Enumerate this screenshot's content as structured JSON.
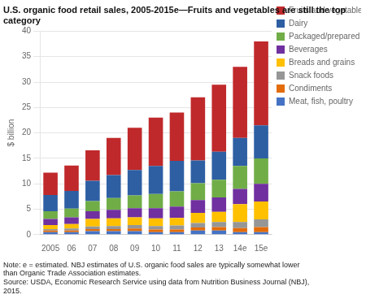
{
  "chart_data": {
    "type": "bar",
    "title": "U.S. organic food retail sales, 2005-2015e—Fruits and vegetables are still the top category",
    "ylabel": "$ billion",
    "note": "Note: e = estimated. NBJ estimates of U.S. organic food sales are typically somewhat lower\nthan Organic Trade Association estimates.\nSource: USDA, Economic Research Service using data from Nutrition Business Journal (NBJ),\n2015.",
    "categories": [
      "2005",
      "06",
      "07",
      "08",
      "09",
      "10",
      "11",
      "12",
      "13",
      "14e",
      "15e"
    ],
    "series": [
      {
        "name": "Meat, fish, poultry",
        "color": "#4472c4",
        "values": [
          0.5,
          0.5,
          0.7,
          0.7,
          0.7,
          0.5,
          0.5,
          0.8,
          0.8,
          0.5,
          0.5
        ]
      },
      {
        "name": "Condiments",
        "color": "#e36c09",
        "values": [
          0.3,
          0.3,
          0.4,
          0.4,
          0.5,
          0.5,
          0.5,
          0.6,
          0.7,
          0.8,
          1.0
        ]
      },
      {
        "name": "Snack foods",
        "color": "#969696",
        "values": [
          0.3,
          0.4,
          0.5,
          0.6,
          0.7,
          0.7,
          0.8,
          0.9,
          1.0,
          1.2,
          1.5
        ]
      },
      {
        "name": "Breads and grains",
        "color": "#ffc000",
        "values": [
          0.8,
          0.9,
          1.5,
          1.5,
          1.5,
          1.5,
          1.5,
          2.0,
          2.0,
          3.5,
          3.5
        ]
      },
      {
        "name": "Beverages",
        "color": "#7030a0",
        "values": [
          1.2,
          1.3,
          1.5,
          1.7,
          1.8,
          2.0,
          2.2,
          2.5,
          2.8,
          3.0,
          3.5
        ]
      },
      {
        "name": "Packaged/prepared foods",
        "color": "#70ad47",
        "values": [
          1.5,
          1.7,
          2.0,
          2.3,
          2.5,
          2.8,
          3.0,
          3.3,
          3.5,
          4.5,
          5.0
        ]
      },
      {
        "name": "Dairy",
        "color": "#2e5fa3",
        "values": [
          3.2,
          3.5,
          4.0,
          4.5,
          5.0,
          5.5,
          6.0,
          4.5,
          5.5,
          5.5,
          6.5
        ]
      },
      {
        "name": "Fruits and vegetables",
        "color": "#c0292b",
        "values": [
          4.4,
          5.0,
          6.0,
          7.3,
          8.3,
          9.5,
          9.5,
          12.4,
          13.2,
          14.0,
          16.5
        ]
      }
    ],
    "ylim": [
      0,
      40
    ],
    "yticks": [
      0,
      5,
      10,
      15,
      20,
      25,
      30,
      35,
      40
    ],
    "grid": true,
    "stacked": true,
    "legend": "right"
  }
}
